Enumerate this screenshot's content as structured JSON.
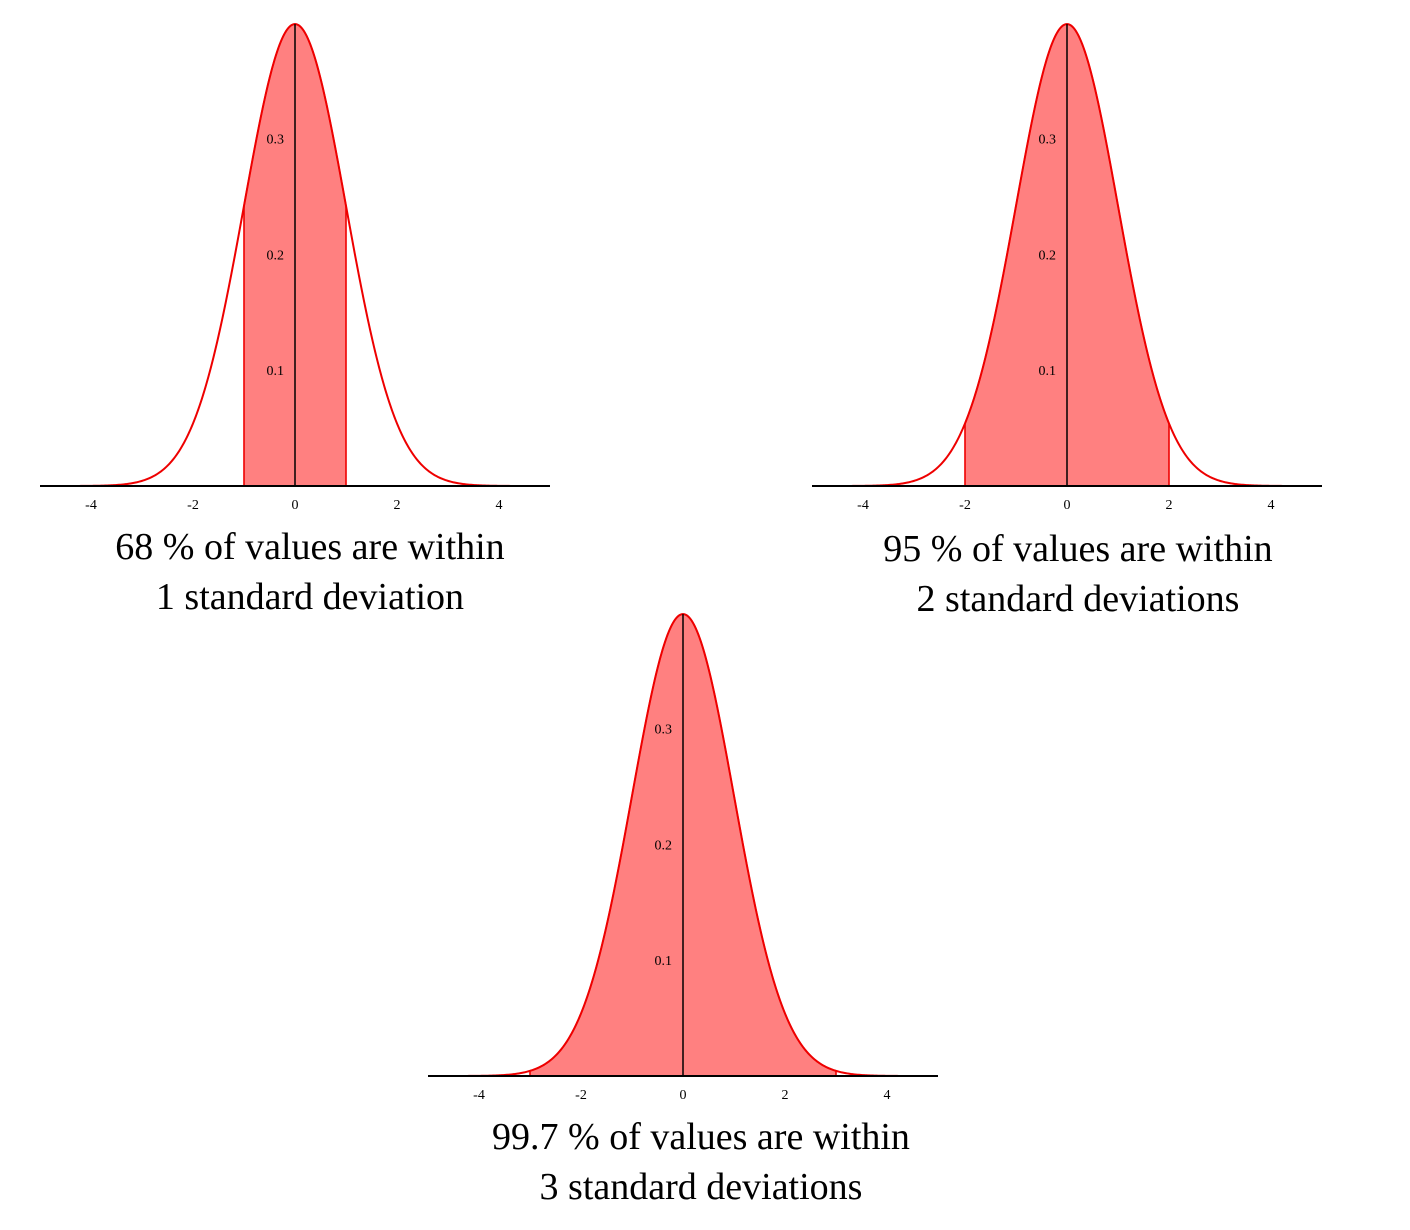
{
  "charts": [
    {
      "caption": {
        "line1": "68 % of values are within",
        "line2": "1 standard deviation"
      }
    },
    {
      "caption": {
        "line1": "95 % of values are within",
        "line2": "2 standard deviations"
      }
    },
    {
      "caption": {
        "line1": "99.7 % of values are within",
        "line2": "3 standard deviations"
      }
    }
  ],
  "colors": {
    "curve": "#ee0000",
    "fill": "#ff8080",
    "axis": "#000000"
  },
  "chart_data": [
    {
      "type": "area",
      "distribution": "standard normal",
      "mean": 0,
      "sd": 1,
      "shaded_interval": [
        -1,
        1
      ],
      "xlim": [
        -5,
        5
      ],
      "ylim": [
        0,
        0.4
      ],
      "xticks": [
        -4,
        -2,
        0,
        2,
        4
      ],
      "yticks": [
        0.1,
        0.2,
        0.3
      ],
      "title": "",
      "xlabel": "",
      "ylabel": "",
      "grid": false
    },
    {
      "type": "area",
      "distribution": "standard normal",
      "mean": 0,
      "sd": 1,
      "shaded_interval": [
        -2,
        2
      ],
      "xlim": [
        -5,
        5
      ],
      "ylim": [
        0,
        0.4
      ],
      "xticks": [
        -4,
        -2,
        0,
        2,
        4
      ],
      "yticks": [
        0.1,
        0.2,
        0.3
      ],
      "title": "",
      "xlabel": "",
      "ylabel": "",
      "grid": false
    },
    {
      "type": "area",
      "distribution": "standard normal",
      "mean": 0,
      "sd": 1,
      "shaded_interval": [
        -3,
        3
      ],
      "xlim": [
        -5,
        5
      ],
      "ylim": [
        0,
        0.4
      ],
      "xticks": [
        -4,
        -2,
        0,
        2,
        4
      ],
      "yticks": [
        0.1,
        0.2,
        0.3
      ],
      "title": "",
      "xlabel": "",
      "ylabel": "",
      "grid": false
    }
  ]
}
